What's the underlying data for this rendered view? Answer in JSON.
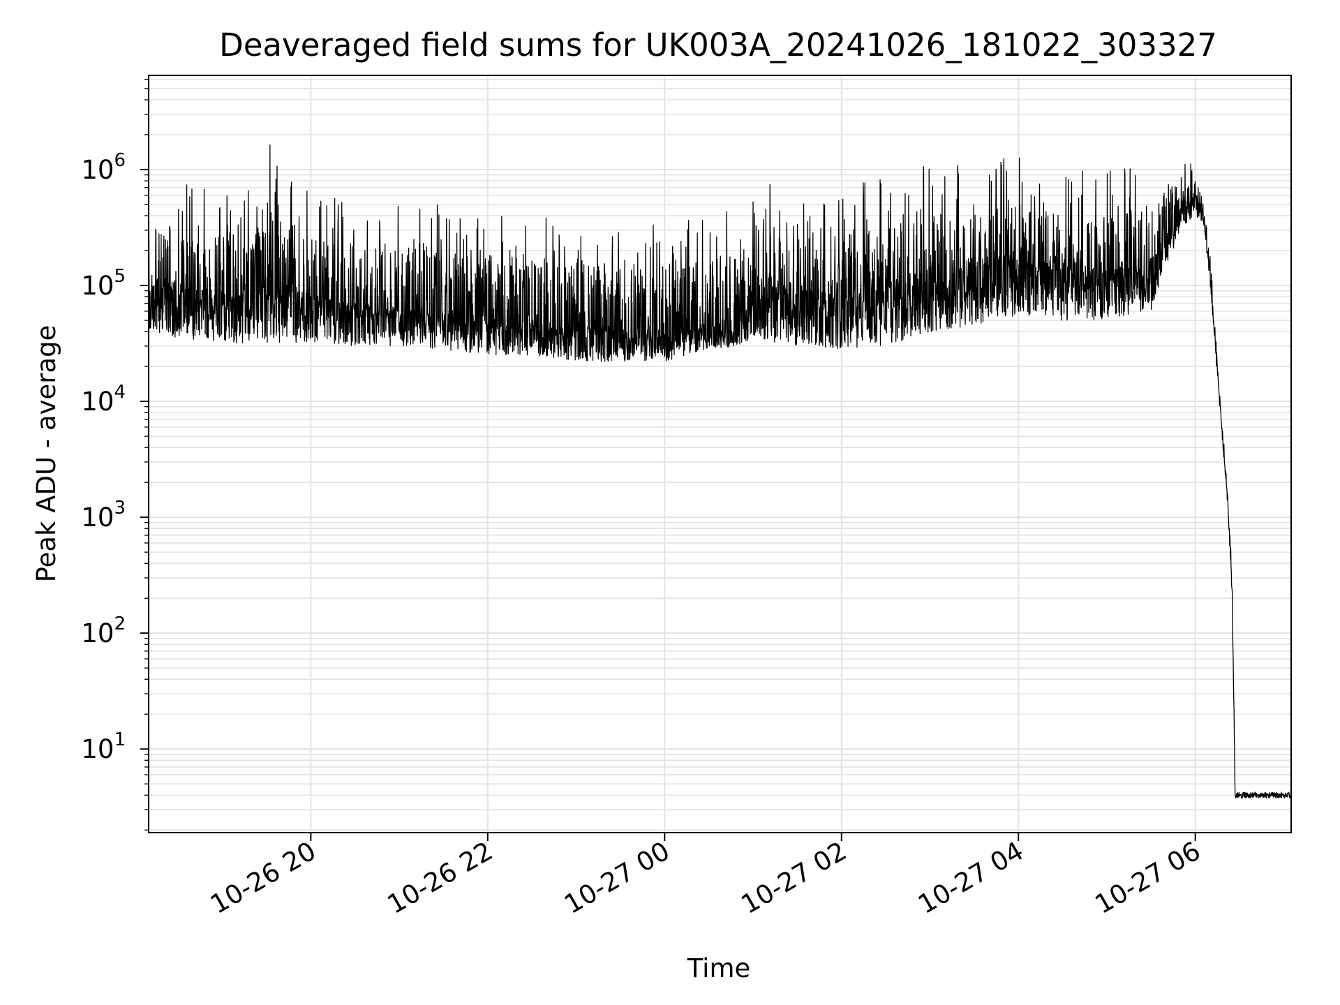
{
  "chart_data": {
    "type": "line",
    "title": "Deaveraged field sums for UK003A_20241026_181022_303327",
    "xlabel": "Time",
    "ylabel": "Peak ADU - average",
    "yscale": "log",
    "grid": true,
    "line_color": "#000000",
    "grid_color": "#e3e3e3",
    "xlim": [
      "2024-10-26 18:10",
      "2024-10-27 07:05"
    ],
    "ylim": [
      1.9,
      6500000
    ],
    "xticks": [
      {
        "value": "2024-10-26 20:00",
        "label": "10-26 20"
      },
      {
        "value": "2024-10-26 22:00",
        "label": "10-26 22"
      },
      {
        "value": "2024-10-27 00:00",
        "label": "10-27 00"
      },
      {
        "value": "2024-10-27 02:00",
        "label": "10-27 02"
      },
      {
        "value": "2024-10-27 04:00",
        "label": "10-27 04"
      },
      {
        "value": "2024-10-27 06:00",
        "label": "10-27 06"
      }
    ],
    "yticks": [
      {
        "value": 10,
        "base": "10",
        "exp": "1"
      },
      {
        "value": 100,
        "base": "10",
        "exp": "2"
      },
      {
        "value": 1000,
        "base": "10",
        "exp": "3"
      },
      {
        "value": 10000,
        "base": "10",
        "exp": "4"
      },
      {
        "value": 100000,
        "base": "10",
        "exp": "5"
      },
      {
        "value": 1000000,
        "base": "10",
        "exp": "6"
      }
    ],
    "series": [
      {
        "x": [
          "2024-10-26 18:10",
          "2024-10-26 18:30",
          "2024-10-26 19:00",
          "2024-10-26 19:20",
          "2024-10-26 19:30",
          "2024-10-26 20:00",
          "2024-10-26 20:30",
          "2024-10-26 21:00",
          "2024-10-26 21:30",
          "2024-10-26 22:00",
          "2024-10-26 22:30",
          "2024-10-26 23:00",
          "2024-10-26 23:30",
          "2024-10-27 00:00",
          "2024-10-27 00:30",
          "2024-10-27 00:50",
          "2024-10-27 01:00",
          "2024-10-27 01:30",
          "2024-10-27 02:00",
          "2024-10-27 02:30",
          "2024-10-27 03:00",
          "2024-10-27 03:30",
          "2024-10-27 04:00",
          "2024-10-27 04:30",
          "2024-10-27 05:00",
          "2024-10-27 05:30",
          "2024-10-27 05:50",
          "2024-10-27 06:00",
          "2024-10-27 06:05",
          "2024-10-27 06:10",
          "2024-10-27 06:15",
          "2024-10-27 06:20",
          "2024-10-27 06:22",
          "2024-10-27 06:25",
          "2024-10-27 06:27",
          "2024-10-27 06:30",
          "2024-10-27 07:05"
        ],
        "low": [
          40000,
          35000,
          33000,
          30000,
          32000,
          32000,
          30000,
          30000,
          28000,
          25000,
          25000,
          22000,
          22000,
          22000,
          28000,
          30000,
          35000,
          30000,
          28000,
          30000,
          40000,
          45000,
          55000,
          50000,
          50000,
          60000,
          300000,
          400000,
          350000,
          100000,
          15000,
          2500,
          1200,
          200,
          4,
          4,
          4
        ],
        "mid": [
          150000,
          120000,
          100000,
          120000,
          200000,
          90000,
          80000,
          70000,
          70000,
          60000,
          55000,
          50000,
          45000,
          45000,
          50000,
          60000,
          150000,
          120000,
          100000,
          150000,
          180000,
          200000,
          250000,
          200000,
          180000,
          200000,
          500000,
          650000,
          500000,
          150000,
          20000,
          3000,
          1500,
          300,
          4,
          4,
          4
        ],
        "high": [
          900000,
          800000,
          700000,
          900000,
          2000000,
          600000,
          550000,
          500000,
          500000,
          450000,
          400000,
          400000,
          350000,
          350000,
          400000,
          500000,
          900000,
          800000,
          700000,
          900000,
          1100000,
          1200000,
          1300000,
          1000000,
          1000000,
          1100000,
          1500000,
          1200000,
          700000,
          200000,
          25000,
          4000,
          1800,
          400,
          4.5,
          4.5,
          4.5
        ]
      }
    ]
  }
}
